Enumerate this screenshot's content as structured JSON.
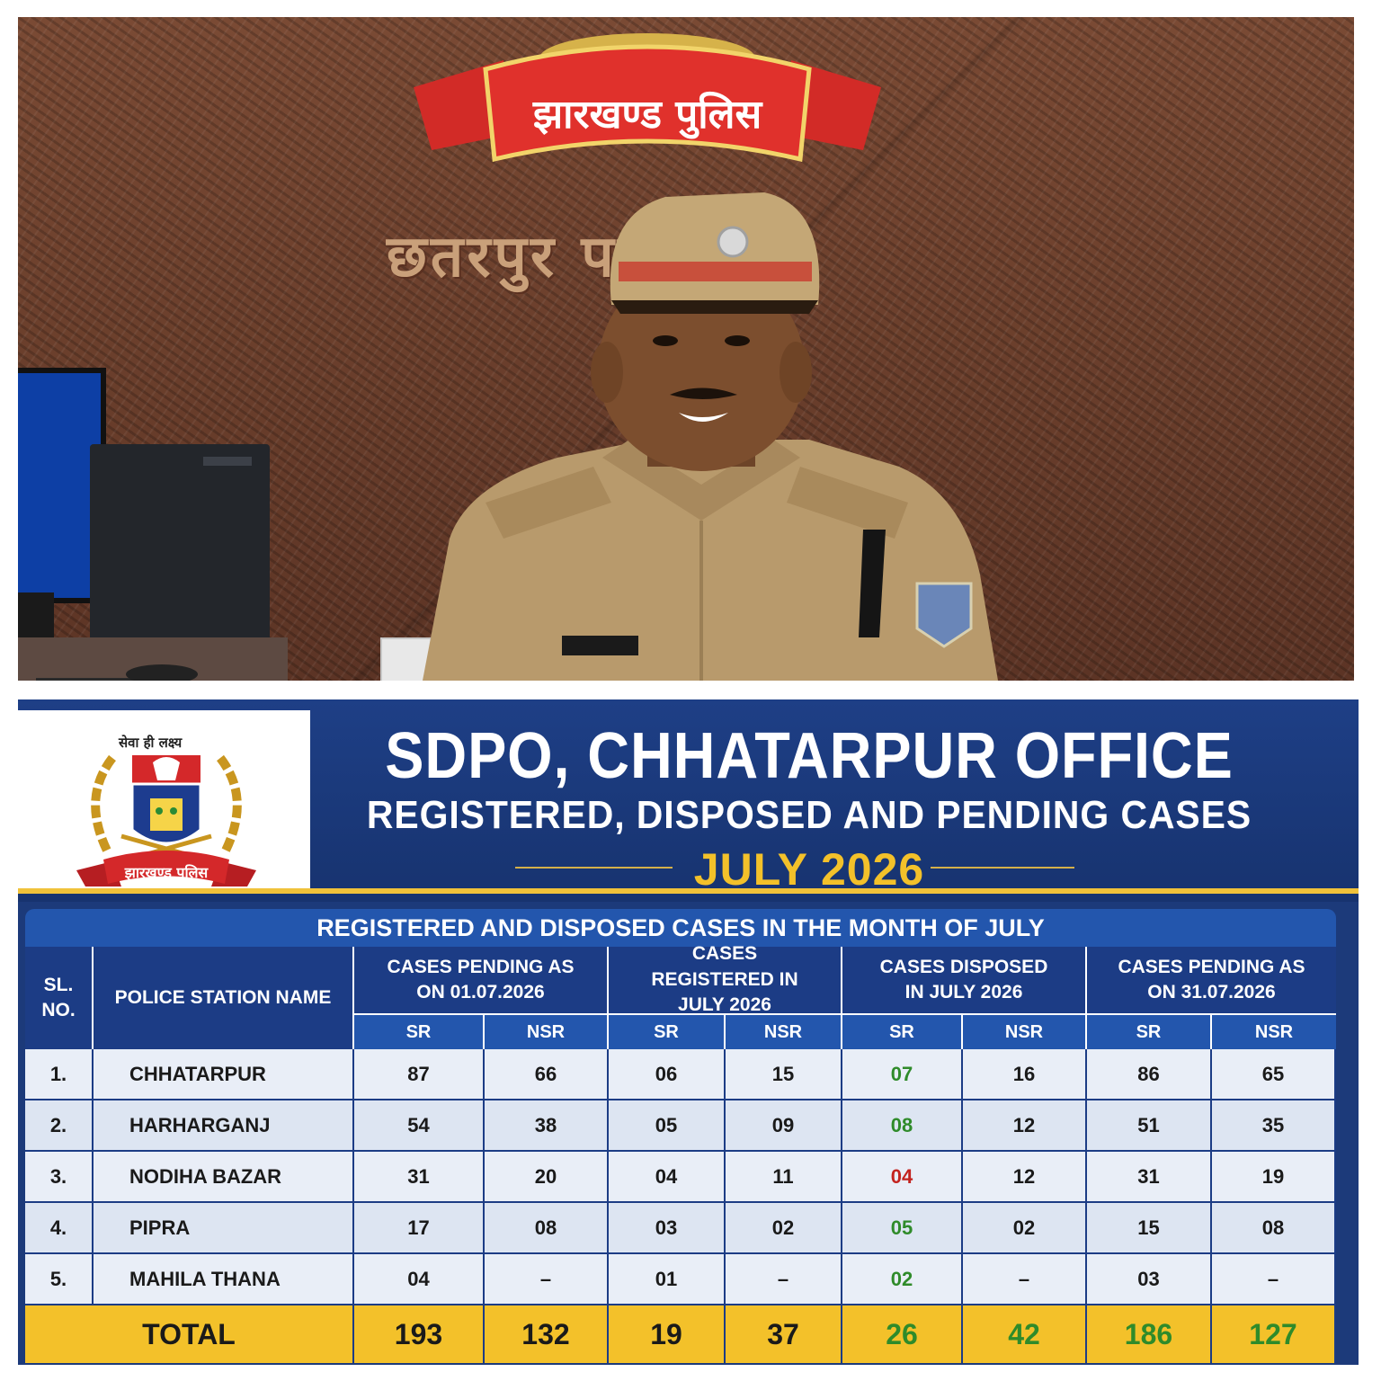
{
  "photo": {
    "banner_text": "झारखण्ड पुलिस",
    "wall_text": "छतरपुर पलामू"
  },
  "poster": {
    "logo": {
      "motto": "सेवा ही लक्ष्य",
      "ribbon_text": "झारखण्ड पुलिस"
    },
    "title": "SDPO, CHHATARPUR OFFICE",
    "subtitle": "REGISTERED, DISPOSED AND PENDING CASES",
    "period": "JULY 2026",
    "table": {
      "caption": "REGISTERED AND DISPOSED CASES IN THE MONTH OF JULY",
      "headers": {
        "sl": "SL. NO.",
        "station": "POLICE STATION NAME",
        "pending_start": "CASES PENDING AS ON 01.07.2026",
        "registered": "CASES REGISTERED IN JULY 2026",
        "disposed": "CASES DISPOSED IN JULY 2026",
        "pending_end": "CASES PENDING AS ON 31.07.2026",
        "sr": "SR",
        "nsr": "NSR"
      },
      "rows": [
        {
          "sl": "1.",
          "name": "CHHATARPUR",
          "p1_sr": "87",
          "p1_nsr": "66",
          "r_sr": "06",
          "r_nsr": "15",
          "d_sr": "07",
          "d_nsr": "16",
          "p2_sr": "86",
          "p2_nsr": "65"
        },
        {
          "sl": "2.",
          "name": "HARHARGANJ",
          "p1_sr": "54",
          "p1_nsr": "38",
          "r_sr": "05",
          "r_nsr": "09",
          "d_sr": "08",
          "d_nsr": "12",
          "p2_sr": "51",
          "p2_nsr": "35"
        },
        {
          "sl": "3.",
          "name": "NODIHA BAZAR",
          "p1_sr": "31",
          "p1_nsr": "20",
          "r_sr": "04",
          "r_nsr": "11",
          "d_sr": "04",
          "d_nsr": "12",
          "p2_sr": "31",
          "p2_nsr": "19"
        },
        {
          "sl": "4.",
          "name": "PIPRA",
          "p1_sr": "17",
          "p1_nsr": "08",
          "r_sr": "03",
          "r_nsr": "02",
          "d_sr": "05",
          "d_nsr": "02",
          "p2_sr": "15",
          "p2_nsr": "08"
        },
        {
          "sl": "5.",
          "name": "MAHILA THANA",
          "p1_sr": "04",
          "p1_nsr": "–",
          "r_sr": "01",
          "r_nsr": "–",
          "d_sr": "02",
          "d_nsr": "–",
          "p2_sr": "03",
          "p2_nsr": "–"
        }
      ],
      "total": {
        "label": "TOTAL",
        "p1_sr": "193",
        "p1_nsr": "132",
        "r_sr": "19",
        "r_nsr": "37",
        "d_sr": "26",
        "d_nsr": "42",
        "p2_sr": "186",
        "p2_nsr": "127"
      }
    },
    "colors": {
      "navy": "#1c3c85",
      "gold": "#f3c12a",
      "green": "#2f8b2a",
      "red": "#c3231f"
    }
  }
}
